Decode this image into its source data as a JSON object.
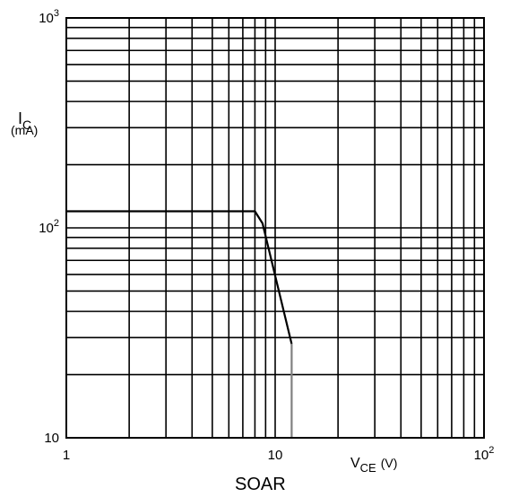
{
  "chart_data": {
    "type": "line",
    "title": "SOAR",
    "xscale": "log",
    "yscale": "log",
    "xlim": [
      1,
      100
    ],
    "ylim": [
      10,
      1000
    ],
    "grid": true,
    "xlabel": {
      "main": "V",
      "sub": "CE",
      "unit": "(V)"
    },
    "ylabel": {
      "main": "I",
      "sub": "C",
      "unit": "(mA)"
    },
    "x_ticks": [
      {
        "value": 1,
        "base": "1",
        "exp": ""
      },
      {
        "value": 10,
        "base": "10",
        "exp": ""
      },
      {
        "value": 100,
        "base": "10",
        "exp": "2"
      }
    ],
    "y_ticks": [
      {
        "value": 10,
        "base": "10",
        "exp": ""
      },
      {
        "value": 100,
        "base": "10",
        "exp": "2"
      },
      {
        "value": 1000,
        "base": "10",
        "exp": "3"
      }
    ],
    "series": [
      {
        "color": "#000000",
        "x": [
          1,
          8,
          8.7,
          12
        ],
        "y": [
          120,
          120,
          105,
          28
        ]
      },
      {
        "color": "#808080",
        "x": [
          12,
          12
        ],
        "y": [
          28,
          10
        ]
      }
    ]
  }
}
